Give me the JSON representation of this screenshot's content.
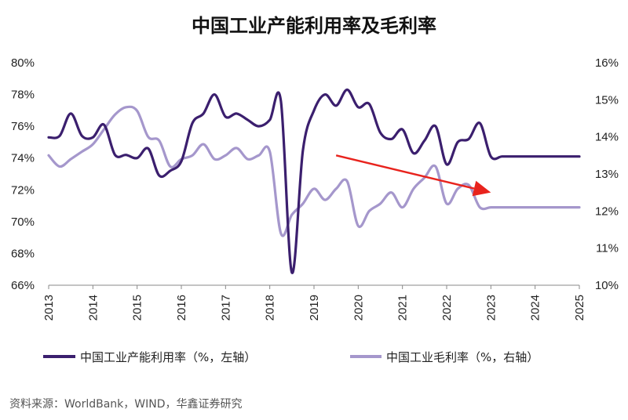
{
  "chart_data": {
    "type": "line",
    "title": "中国工业产能利用率及毛利率",
    "source": "资料来源：WorldBank，WIND，华鑫证券研究",
    "x_ticks": [
      "2013",
      "2014",
      "2015",
      "2016",
      "2017",
      "2018",
      "2019",
      "2020",
      "2021",
      "2022",
      "2023",
      "2024",
      "2025"
    ],
    "y_left": {
      "ticks": [
        "66%",
        "68%",
        "70%",
        "72%",
        "74%",
        "76%",
        "78%",
        "80%"
      ],
      "min": 66,
      "max": 80
    },
    "y_right": {
      "ticks": [
        "10%",
        "11%",
        "12%",
        "13%",
        "14%",
        "15%",
        "16%"
      ],
      "min": 10,
      "max": 16
    },
    "grid": false,
    "legend_position": "bottom",
    "colors": {
      "capacity": "#3b1f6e",
      "margin": "#a597cc",
      "arrow": "#e8231d"
    },
    "series": [
      {
        "name": "中国工业产能利用率（%，左轴）",
        "axis": "left",
        "x": [
          2013.0,
          2013.25,
          2013.5,
          2013.75,
          2014.0,
          2014.25,
          2014.5,
          2014.75,
          2015.0,
          2015.25,
          2015.5,
          2015.75,
          2016.0,
          2016.25,
          2016.5,
          2016.75,
          2017.0,
          2017.25,
          2017.5,
          2017.75,
          2018.0,
          2018.25,
          2018.5,
          2018.75,
          2019.0,
          2019.25,
          2019.5,
          2019.75,
          2020.0,
          2020.25,
          2020.5,
          2020.75,
          2021.0,
          2021.25,
          2021.5,
          2021.75,
          2022.0,
          2022.25,
          2022.5,
          2022.75,
          2023.0,
          2023.25,
          2023.5,
          2023.75,
          2024.0,
          2024.25,
          2024.5,
          2024.75,
          2025.0
        ],
        "values": [
          75.3,
          75.4,
          76.8,
          75.4,
          75.3,
          76.1,
          74.2,
          74.2,
          74.0,
          74.6,
          72.9,
          73.2,
          73.8,
          76.2,
          76.8,
          78.0,
          76.6,
          76.8,
          76.4,
          76.0,
          76.4,
          77.6,
          66.8,
          74.5,
          77.0,
          78.0,
          77.3,
          78.3,
          77.2,
          77.4,
          75.6,
          75.2,
          75.8,
          74.3,
          75.1,
          76.0,
          73.6,
          75.0,
          75.2,
          76.2,
          74.1,
          74.1,
          74.1,
          74.1,
          74.1,
          74.1,
          74.1,
          74.1,
          74.1
        ]
      },
      {
        "name": "中国工业毛利率（%，右轴）",
        "axis": "right",
        "x": [
          2013.0,
          2013.25,
          2013.5,
          2013.75,
          2014.0,
          2014.25,
          2014.5,
          2014.75,
          2015.0,
          2015.25,
          2015.5,
          2015.75,
          2016.0,
          2016.25,
          2016.5,
          2016.75,
          2017.0,
          2017.25,
          2017.5,
          2017.75,
          2018.0,
          2018.25,
          2018.5,
          2018.75,
          2019.0,
          2019.25,
          2019.5,
          2019.75,
          2020.0,
          2020.25,
          2020.5,
          2020.75,
          2021.0,
          2021.25,
          2021.5,
          2021.75,
          2022.0,
          2022.25,
          2022.5,
          2022.75,
          2023.0,
          2023.25,
          2023.5,
          2023.75,
          2024.0,
          2024.25,
          2024.5,
          2024.75,
          2025.0
        ],
        "values": [
          13.5,
          13.2,
          13.4,
          13.6,
          13.8,
          14.2,
          14.6,
          14.8,
          14.7,
          14.0,
          13.9,
          13.2,
          13.4,
          13.5,
          13.8,
          13.4,
          13.5,
          13.7,
          13.4,
          13.5,
          13.6,
          11.4,
          11.9,
          12.2,
          12.6,
          12.3,
          12.6,
          12.8,
          11.6,
          12.0,
          12.2,
          12.5,
          12.1,
          12.6,
          12.9,
          13.2,
          12.2,
          12.6,
          12.7,
          12.1,
          12.1,
          12.1,
          12.1,
          12.1,
          12.1,
          12.1,
          12.1,
          12.1,
          12.1
        ]
      }
    ],
    "annotations": [
      {
        "type": "arrow",
        "from": {
          "x": 2019.5,
          "y_right": 13.5
        },
        "to": {
          "x": 2023.0,
          "y_right": 12.5
        }
      }
    ]
  }
}
